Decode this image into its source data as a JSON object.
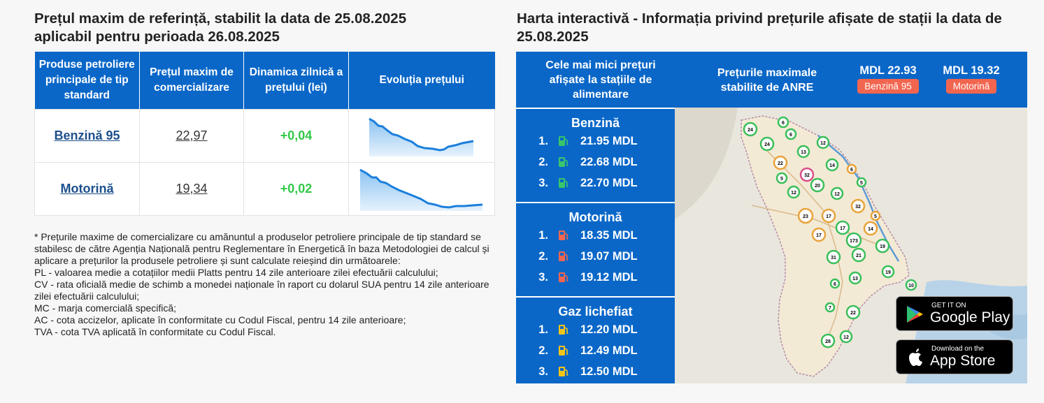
{
  "left": {
    "title_line1": "Prețul maxim de referință, stabilit la data de 25.08.2025",
    "title_line2": "aplicabil pentru perioada 26.08.2025",
    "table": {
      "headers": [
        "Produse petroliere principale de tip standard",
        "Prețul maxim de comercializare",
        "Dinamica zilnică a prețului (lei)",
        "Evoluția prețului"
      ],
      "rows": [
        {
          "product": "Benzină 95",
          "price": "22,97",
          "change": "+0,04"
        },
        {
          "product": "Motorină",
          "price": "19,34",
          "change": "+0,02"
        }
      ]
    },
    "notes": [
      "* Prețurile maxime de comercializare cu amănuntul a produselor petroliere principale de tip standard se stabilesc de către Agenția Națională pentru Reglementare în Energetică în baza Metodologiei de calcul și aplicare a prețurilor la produsele petroliere și sunt calculate reieșind din următoarele:",
      "PL - valoarea medie a cotațiilor medii Platts pentru 14 zile anterioare zilei efectuării calculului;",
      "CV - rata oficială medie de schimb a monedei naționale în raport cu dolarul SUA pentru 14 zile anterioare zilei efectuării calculului;",
      "MC - marja comercială specifică;",
      "AC - cota accizelor, aplicate în conformitate cu Codul Fiscal, pentru 14 zile anterioare;",
      "TVA - cota TVA aplicată în conformitate cu Codul Fiscal."
    ]
  },
  "right": {
    "title": "Harta interactivă - Informația privind prețurile afișate de stații la data de 25.08.2025",
    "lowest_label": "Cele mai mici prețuri afișate la stațiile de alimentare",
    "max_label": "Prețurile maximale stabilite de ANRE",
    "max_prices": [
      {
        "amount": "MDL 22.93",
        "fuel": "Benzină 95"
      },
      {
        "amount": "MDL 19.32",
        "fuel": "Motorină"
      }
    ],
    "sections": [
      {
        "name": "Benzină",
        "icon": "green-fuel-pump-icon",
        "rows": [
          {
            "rank": "1.",
            "price": "21.95 MDL"
          },
          {
            "rank": "2.",
            "price": "22.68 MDL"
          },
          {
            "rank": "3.",
            "price": "22.70 MDL"
          }
        ]
      },
      {
        "name": "Motorină",
        "icon": "red-fuel-pump-icon",
        "rows": [
          {
            "rank": "1.",
            "price": "18.35 MDL"
          },
          {
            "rank": "2.",
            "price": "19.07 MDL"
          },
          {
            "rank": "3.",
            "price": "19.12 MDL"
          }
        ]
      },
      {
        "name": "Gaz lichefiat",
        "icon": "yellow-fuel-pump-icon",
        "rows": [
          {
            "rank": "1.",
            "price": "12.20 MDL"
          },
          {
            "rank": "2.",
            "price": "12.49 MDL"
          },
          {
            "rank": "3.",
            "price": "12.50 MDL"
          }
        ]
      }
    ],
    "map_clusters": [
      "24",
      "6",
      "6",
      "24",
      "13",
      "12",
      "22",
      "14",
      "6",
      "32",
      "5",
      "20",
      "5",
      "12",
      "12",
      "32",
      "23",
      "17",
      "5",
      "17",
      "14",
      "17",
      "173",
      "19",
      "31",
      "21",
      "19",
      "6",
      "13",
      "10",
      "7",
      "22",
      "12",
      "28"
    ],
    "stores": {
      "google_small": "GET IT ON",
      "google_big": "Google Play",
      "apple_small": "Download on the",
      "apple_big": "App Store"
    }
  },
  "colors": {
    "header_blue": "#0a67c8",
    "positive_green": "#33c94a",
    "badge_red": "#f2654f"
  }
}
